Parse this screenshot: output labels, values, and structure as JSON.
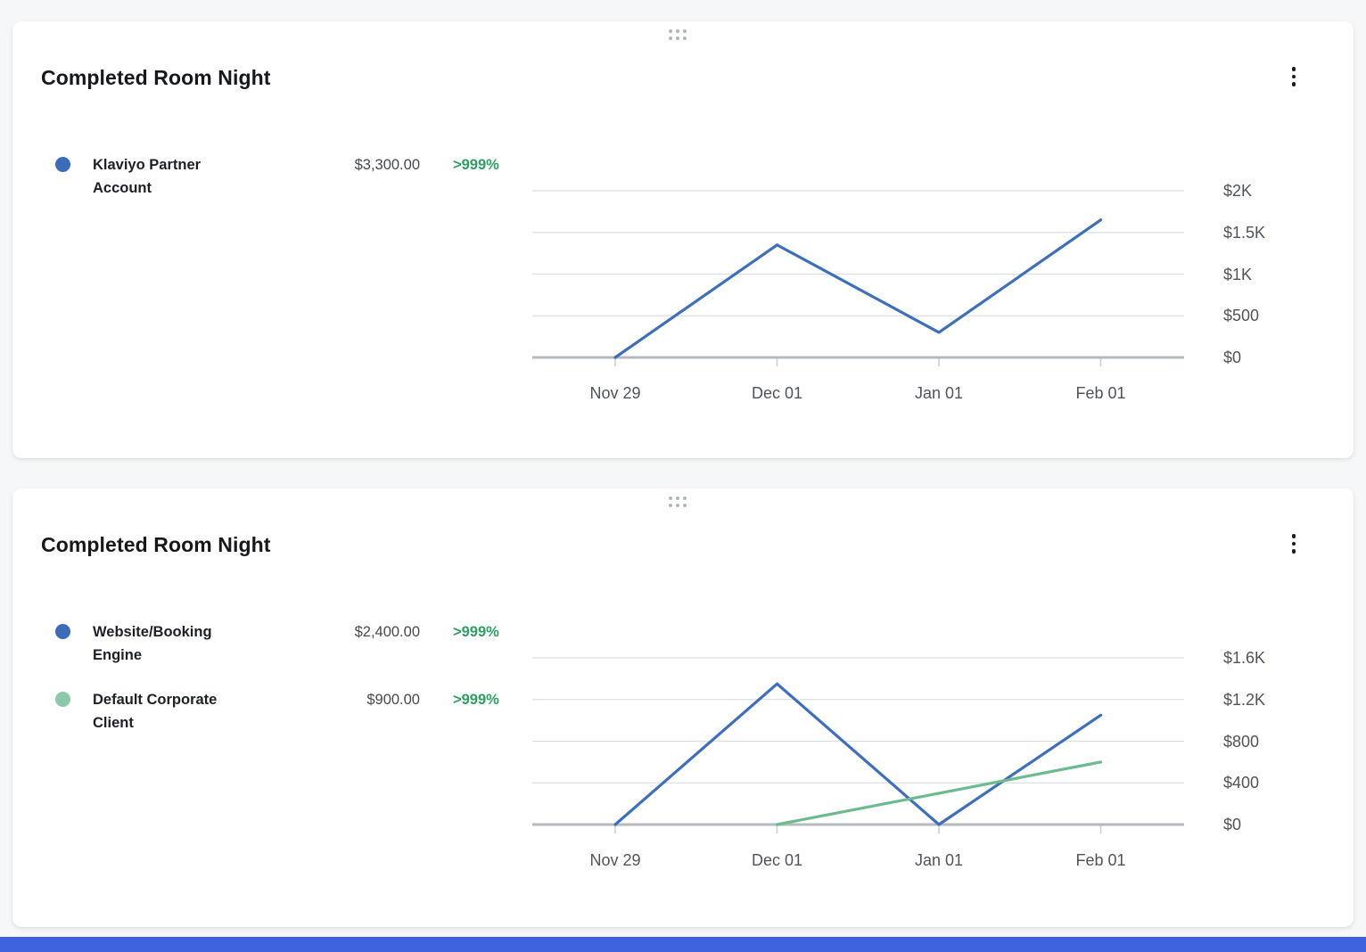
{
  "page": {
    "background": "#f6f7f8",
    "bottom_bar_color": "#3e63dd"
  },
  "icons": {
    "drag_handle": "six-dot-drag-handle",
    "card_menu": "vertical-kebab-menu"
  },
  "cards": [
    {
      "title": "Completed Room Night",
      "legend": [
        {
          "label": "Klaviyo Partner Account",
          "value": "$3,300.00",
          "change": ">999%",
          "dot_color": "#3a6cb8",
          "change_color": "#2e9e62"
        }
      ],
      "chart_data": {
        "type": "line",
        "categories": [
          "Nov 29",
          "Dec 01",
          "Jan 01",
          "Feb 01"
        ],
        "series": [
          {
            "name": "Klaviyo Partner Account",
            "color": "#3d6fba",
            "values": [
              0,
              1350,
              300,
              1650
            ]
          }
        ],
        "title": "Completed Room Night",
        "xlabel": "",
        "ylabel": "",
        "ylim": [
          0,
          2000
        ],
        "y_tick_values": [
          2000,
          1500,
          1000,
          500,
          0
        ],
        "y_tick_labels": [
          "$2K",
          "$1.5K",
          "$1K",
          "$500",
          "$0"
        ],
        "grid": true,
        "legend_position": "left",
        "y_axis_position": "right"
      }
    },
    {
      "title": "Completed Room Night",
      "legend": [
        {
          "label": "Website/Booking Engine",
          "value": "$2,400.00",
          "change": ">999%",
          "dot_color": "#3a6cb8",
          "change_color": "#2e9e62"
        },
        {
          "label": "Default Corporate Client",
          "value": "$900.00",
          "change": ">999%",
          "dot_color": "#8cc9a9",
          "change_color": "#2e9e62"
        }
      ],
      "chart_data": {
        "type": "line",
        "categories": [
          "Nov 29",
          "Dec 01",
          "Jan 01",
          "Feb 01"
        ],
        "series": [
          {
            "name": "Website/Booking Engine",
            "color": "#3d6fba",
            "values": [
              0,
              1350,
              0,
              1050
            ]
          },
          {
            "name": "Default Corporate Client",
            "color": "#6cbb8e",
            "values": [
              null,
              0,
              300,
              600
            ]
          }
        ],
        "title": "Completed Room Night",
        "xlabel": "",
        "ylabel": "",
        "ylim": [
          0,
          1600
        ],
        "y_tick_values": [
          1600,
          1200,
          800,
          400,
          0
        ],
        "y_tick_labels": [
          "$1.6K",
          "$1.2K",
          "$800",
          "$400",
          "$0"
        ],
        "grid": true,
        "legend_position": "left",
        "y_axis_position": "right"
      }
    }
  ]
}
